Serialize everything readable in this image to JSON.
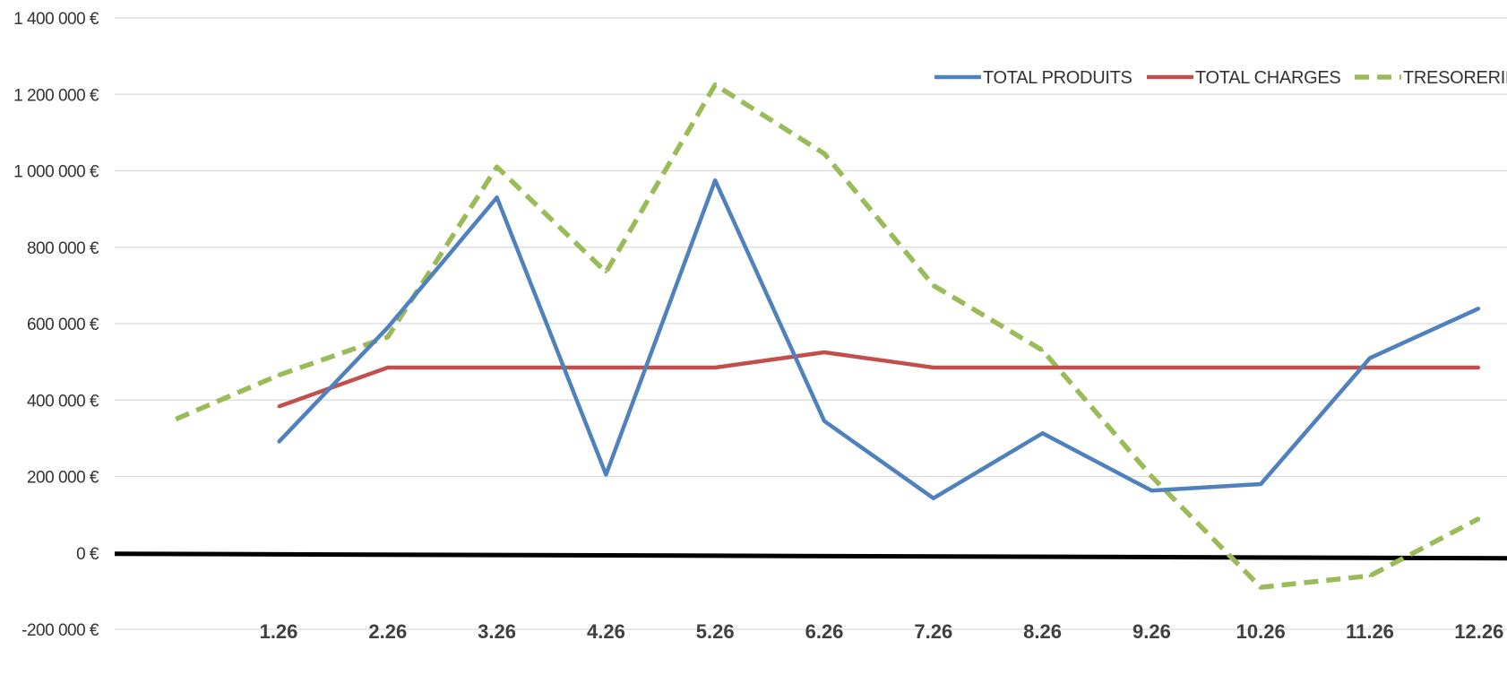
{
  "chart_data": {
    "type": "line",
    "title": "",
    "xlabel": "",
    "ylabel": "",
    "categories": [
      "1.26",
      "2.26",
      "3.26",
      "4.26",
      "5.26",
      "6.26",
      "7.26",
      "8.26",
      "9.26",
      "10.26",
      "11.26",
      "12.26"
    ],
    "y_ticks": [
      "1 400 000 €",
      "1 200 000 €",
      "1 000 000 €",
      "800 000 €",
      "600 000 €",
      "400 000 €",
      "200 000 €",
      "0 €",
      "-200 000 €"
    ],
    "ylim": [
      -200000,
      1400000
    ],
    "grid": true,
    "legend_position": "top-right",
    "series": [
      {
        "name": "TOTAL PRODUITS",
        "color": "#4f81bd",
        "dash": "solid",
        "values": [
          290000,
          590000,
          930000,
          205000,
          975000,
          345000,
          143000,
          313000,
          163000,
          180000,
          510000,
          640000
        ]
      },
      {
        "name": "TOTAL CHARGES",
        "color": "#c0504d",
        "dash": "solid",
        "values": [
          383000,
          485000,
          485000,
          485000,
          485000,
          525000,
          485000,
          485000,
          485000,
          485000,
          485000,
          485000
        ]
      },
      {
        "name": "TRESORERIE",
        "color": "#9bbb59",
        "dash": "dashed",
        "initial_value": 350000,
        "values": [
          465000,
          565000,
          1010000,
          735000,
          1225000,
          1045000,
          700000,
          530000,
          200000,
          -90000,
          -60000,
          90000
        ]
      }
    ]
  }
}
